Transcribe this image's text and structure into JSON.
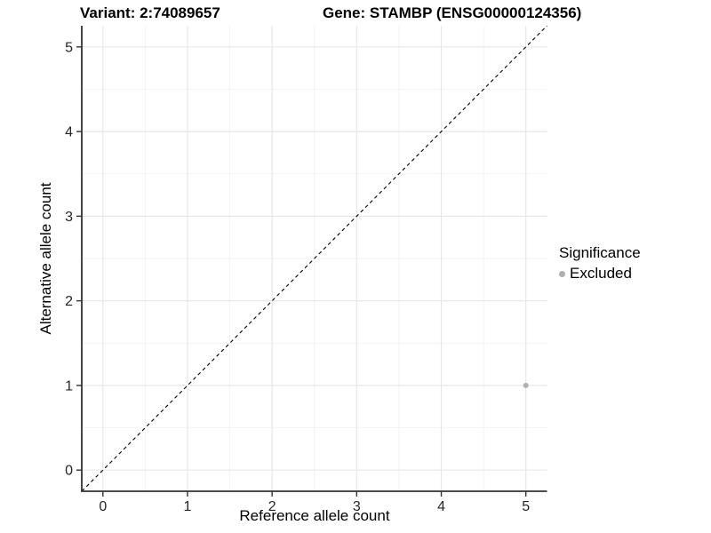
{
  "chart_data": {
    "type": "scatter",
    "title_left": "Variant: 2:74089657",
    "title_right": "Gene: STAMBP (ENSG00000124356)",
    "xlabel": "Reference allele count",
    "ylabel": "Alternative allele count",
    "xlim": [
      -0.25,
      5.25
    ],
    "ylim": [
      -0.25,
      5.25
    ],
    "xticks": [
      0,
      1,
      2,
      3,
      4,
      5
    ],
    "yticks": [
      0,
      1,
      2,
      3,
      4,
      5
    ],
    "minor_grid_step": 0.5,
    "grid": "major+minor",
    "reference_line": {
      "type": "identity",
      "slope": 1,
      "intercept": 0,
      "style": "dashed",
      "color": "#000000"
    },
    "series": [
      {
        "name": "Excluded",
        "marker": "circle",
        "color": "#b0b0b0",
        "points": [
          [
            5,
            1
          ]
        ]
      }
    ],
    "legend": {
      "title": "Significance",
      "position": "right",
      "entries": [
        {
          "label": "Excluded",
          "color": "#b0b0b0"
        }
      ]
    },
    "colors": {
      "grid_major": "#e7e7e7",
      "grid_minor": "#f2f2f2",
      "axis_line": "#333333",
      "tick_label": "#262626",
      "title": "#000000"
    }
  }
}
